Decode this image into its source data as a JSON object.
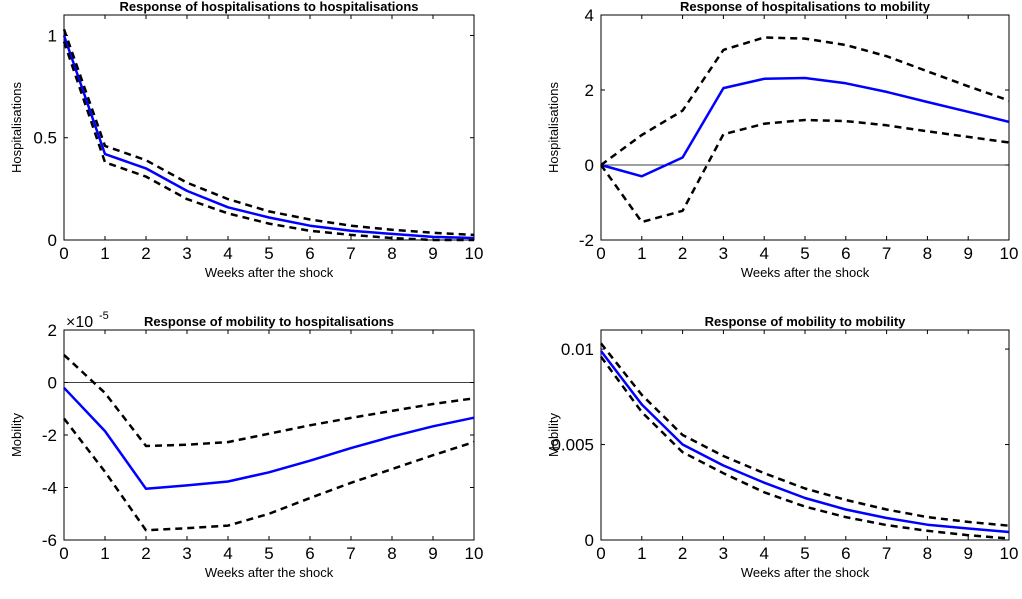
{
  "chart_data": [
    {
      "type": "line",
      "title": "Response of hospitalisations to hospitalisations",
      "xlabel": "Weeks after the shock",
      "ylabel": "Hospitalisations",
      "xlim": [
        0,
        10
      ],
      "ylim": [
        0,
        1.1
      ],
      "xticks": [
        0,
        1,
        2,
        3,
        4,
        5,
        6,
        7,
        8,
        9,
        10
      ],
      "yticks": [
        0,
        0.5,
        1
      ],
      "ytick_labels": [
        "0",
        "0.5",
        "1"
      ],
      "zero_line": false,
      "multiplier_base": "",
      "multiplier_exp": "",
      "x": [
        0,
        1,
        2,
        3,
        4,
        5,
        6,
        7,
        8,
        9,
        10
      ],
      "series": [
        {
          "style": "solid",
          "color": "#0000ff",
          "values": [
            1.0,
            0.42,
            0.35,
            0.24,
            0.16,
            0.11,
            0.07,
            0.045,
            0.03,
            0.015,
            0.01
          ]
        },
        {
          "style": "dashed",
          "color": "#000000",
          "values": [
            1.03,
            0.46,
            0.39,
            0.28,
            0.2,
            0.14,
            0.1,
            0.07,
            0.05,
            0.035,
            0.025
          ]
        },
        {
          "style": "dashed",
          "color": "#000000",
          "values": [
            0.97,
            0.38,
            0.31,
            0.2,
            0.13,
            0.08,
            0.045,
            0.025,
            0.01,
            0.0,
            0.0
          ]
        }
      ]
    },
    {
      "type": "line",
      "title": "Response of hospitalisations to mobility",
      "xlabel": "Weeks after the shock",
      "ylabel": "Hospitalisations",
      "xlim": [
        0,
        10
      ],
      "ylim": [
        -2,
        4
      ],
      "xticks": [
        0,
        1,
        2,
        3,
        4,
        5,
        6,
        7,
        8,
        9,
        10
      ],
      "yticks": [
        -2,
        0,
        2,
        4
      ],
      "ytick_labels": [
        "-2",
        "0",
        "2",
        "4"
      ],
      "zero_line": true,
      "multiplier_base": "",
      "multiplier_exp": "",
      "x": [
        0,
        1,
        2,
        3,
        4,
        5,
        6,
        7,
        8,
        9,
        10
      ],
      "series": [
        {
          "style": "solid",
          "color": "#0000ff",
          "values": [
            0.0,
            -0.3,
            0.2,
            2.05,
            2.3,
            2.32,
            2.18,
            1.95,
            1.68,
            1.42,
            1.15
          ]
        },
        {
          "style": "dashed",
          "color": "#000000",
          "values": [
            0.0,
            0.8,
            1.45,
            3.07,
            3.4,
            3.37,
            3.2,
            2.9,
            2.5,
            2.1,
            1.72
          ]
        },
        {
          "style": "dashed",
          "color": "#000000",
          "values": [
            0.0,
            -1.52,
            -1.22,
            0.82,
            1.1,
            1.2,
            1.17,
            1.06,
            0.9,
            0.75,
            0.6
          ]
        }
      ]
    },
    {
      "type": "line",
      "title": "Response of mobility to hospitalisations",
      "xlabel": "Weeks after the shock",
      "ylabel": "Mobility",
      "xlim": [
        0,
        10
      ],
      "ylim": [
        -6,
        2
      ],
      "xticks": [
        0,
        1,
        2,
        3,
        4,
        5,
        6,
        7,
        8,
        9,
        10
      ],
      "yticks": [
        -6,
        -4,
        -2,
        0,
        2
      ],
      "ytick_labels": [
        "-6",
        "-4",
        "-2",
        "0",
        "2"
      ],
      "zero_line": true,
      "multiplier_base": "×10",
      "multiplier_exp": "-5",
      "x": [
        0,
        1,
        2,
        3,
        4,
        5,
        6,
        7,
        8,
        9,
        10
      ],
      "series": [
        {
          "style": "solid",
          "color": "#0000ff",
          "values": [
            -0.2,
            -1.85,
            -4.05,
            -3.92,
            -3.77,
            -3.42,
            -2.98,
            -2.5,
            -2.06,
            -1.67,
            -1.34
          ]
        },
        {
          "style": "dashed",
          "color": "#000000",
          "values": [
            1.05,
            -0.4,
            -2.42,
            -2.37,
            -2.27,
            -1.95,
            -1.63,
            -1.35,
            -1.08,
            -0.82,
            -0.6
          ]
        },
        {
          "style": "dashed",
          "color": "#000000",
          "values": [
            -1.37,
            -3.4,
            -5.63,
            -5.55,
            -5.45,
            -5.0,
            -4.4,
            -3.82,
            -3.3,
            -2.77,
            -2.27
          ]
        }
      ]
    },
    {
      "type": "line",
      "title": "Response of mobility to mobility",
      "xlabel": "Weeks after the shock",
      "ylabel": "Mobility",
      "xlim": [
        0,
        10
      ],
      "ylim": [
        0,
        0.011
      ],
      "xticks": [
        0,
        1,
        2,
        3,
        4,
        5,
        6,
        7,
        8,
        9,
        10
      ],
      "yticks": [
        0,
        0.005,
        0.01
      ],
      "ytick_labels": [
        "0",
        "0.005",
        "0.01"
      ],
      "zero_line": false,
      "multiplier_base": "",
      "multiplier_exp": "",
      "x": [
        0,
        1,
        2,
        3,
        4,
        5,
        6,
        7,
        8,
        9,
        10
      ],
      "series": [
        {
          "style": "solid",
          "color": "#0000ff",
          "values": [
            0.0099,
            0.0071,
            0.005,
            0.0039,
            0.003,
            0.0022,
            0.0016,
            0.00115,
            0.0008,
            0.0006,
            0.00042
          ]
        },
        {
          "style": "dashed",
          "color": "#000000",
          "values": [
            0.0103,
            0.0076,
            0.0055,
            0.0044,
            0.0035,
            0.0027,
            0.0021,
            0.0016,
            0.0012,
            0.00095,
            0.00075
          ]
        },
        {
          "style": "dashed",
          "color": "#000000",
          "values": [
            0.0096,
            0.0067,
            0.0046,
            0.0035,
            0.0025,
            0.00175,
            0.0012,
            0.00078,
            0.00048,
            0.00025,
            8e-05
          ]
        }
      ]
    }
  ]
}
